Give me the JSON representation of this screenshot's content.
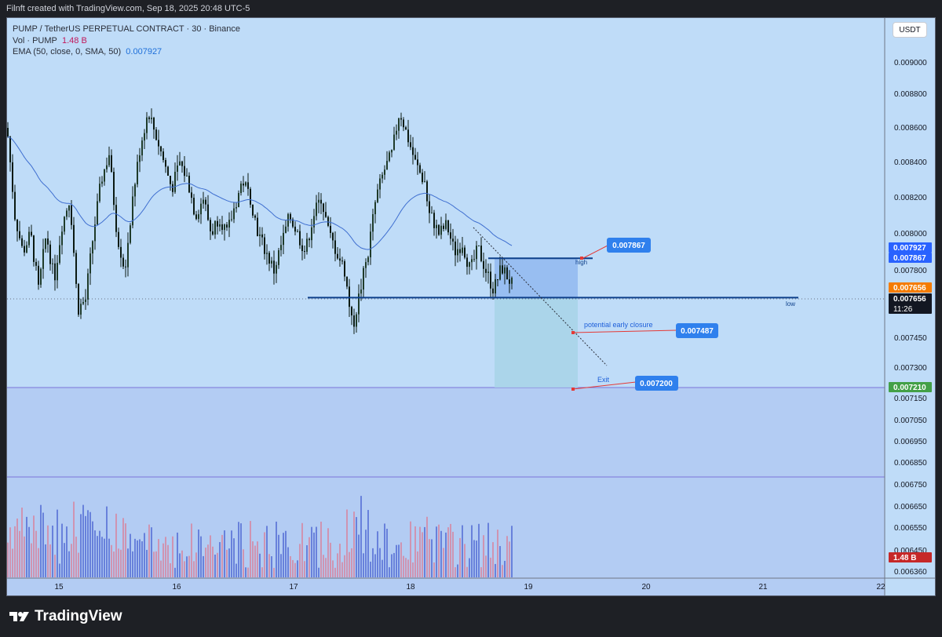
{
  "header": {
    "credit": "Filnft created with TradingView.com, Sep 18, 2025 20:48 UTC-5"
  },
  "legend": {
    "symbol": "PUMP / TetherUS PERPETUAL CONTRACT · 30 · Binance",
    "vol_label": "Vol · PUMP",
    "vol_value": "1.48 B",
    "ema_label": "EMA (50, close, 0, SMA, 50)",
    "ema_value": "0.007927"
  },
  "currency_button": "USDT",
  "footer": {
    "brand": "TradingView"
  },
  "colors": {
    "background": "#bfdcf8",
    "up": "#0b1a12",
    "down": "#0b1a12",
    "ema": "#3f6fd0",
    "accent": "#2962ff",
    "short_stop": "#90b8f0",
    "short_target": "#a8d4e8"
  },
  "chart_data": {
    "type": "candlestick",
    "title": "PUMP / TetherUS PERPETUAL CONTRACT · 30 · Binance",
    "x_ticks": [
      "15",
      "16",
      "17",
      "18",
      "19",
      "20",
      "21",
      "22"
    ],
    "y_ticks": [
      "0.009000",
      "0.008800",
      "0.008600",
      "0.008400",
      "0.008200",
      "0.008000",
      "0.007800",
      "0.007450",
      "0.007300",
      "0.007150",
      "0.007050",
      "0.006950",
      "0.006850",
      "0.006750",
      "0.006650",
      "0.006550",
      "0.006450",
      "0.006360"
    ],
    "price_tags": [
      {
        "value": "0.007927",
        "color": "#2962ff",
        "text_color": "#ffffff"
      },
      {
        "value": "0.007867",
        "color": "#2962ff",
        "text_color": "#ffffff"
      },
      {
        "value": "0.007656",
        "color": "#f57c00",
        "text_color": "#ffffff"
      },
      {
        "value": "0.007656",
        "color": "#131722",
        "text_color": "#ffffff",
        "sub": "11:26"
      },
      {
        "value": "0.007210",
        "color": "#43a047",
        "text_color": "#ffffff"
      },
      {
        "value": "1.48 B",
        "color": "#c62828",
        "text_color": "#ffffff"
      }
    ],
    "annotations": [
      {
        "text": "0.007867",
        "label": "high"
      },
      {
        "text": "0.007487",
        "label": "potential early closure"
      },
      {
        "text": "0.007200",
        "label": "Exit"
      },
      {
        "text": "low"
      }
    ],
    "levels": {
      "high": 0.007867,
      "low": 0.007656,
      "early_closure": 0.007487,
      "exit": 0.0072,
      "ema_last": 0.007927
    },
    "price_range_approx": [
      0.00746,
      0.00877
    ],
    "volume_last": "1.48 B"
  }
}
